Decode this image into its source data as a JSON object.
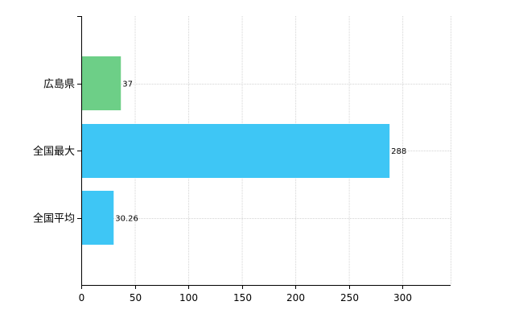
{
  "chart_data": {
    "type": "bar",
    "orientation": "horizontal",
    "categories": [
      "広島県",
      "全国最大",
      "全国平均"
    ],
    "values": [
      37,
      288,
      30.26
    ],
    "data_labels": [
      "37",
      "288",
      "30.26"
    ],
    "colors": [
      "#6dcf87",
      "#3ec6f5",
      "#3ec6f5"
    ],
    "xlim": [
      0,
      345
    ],
    "xticks": [
      0,
      50,
      100,
      150,
      200,
      250,
      300
    ],
    "grid": true,
    "legend": "none",
    "title": "",
    "xlabel": "",
    "ylabel": ""
  }
}
